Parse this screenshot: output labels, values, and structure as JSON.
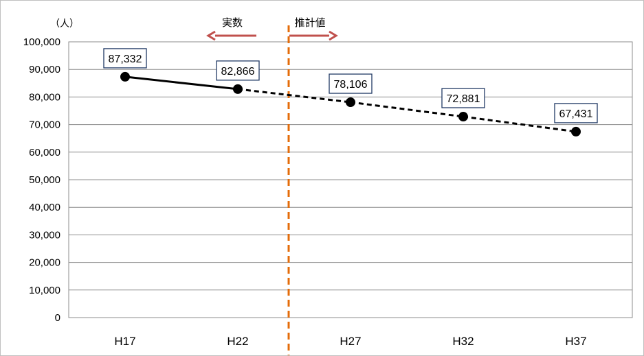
{
  "chart_data": {
    "type": "line",
    "categories": [
      "H17",
      "H22",
      "H27",
      "H32",
      "H37"
    ],
    "values": [
      87332,
      82866,
      78106,
      72881,
      67431
    ],
    "data_labels": [
      "87,332",
      "82,866",
      "78,106",
      "72,881",
      "67,431"
    ],
    "actual_count": 2,
    "ylim": [
      0,
      100000
    ],
    "yticks": [
      0,
      10000,
      20000,
      30000,
      40000,
      50000,
      60000,
      70000,
      80000,
      90000,
      100000
    ],
    "ytick_labels": [
      "0",
      "10,000",
      "20,000",
      "30,000",
      "40,000",
      "50,000",
      "60,000",
      "70,000",
      "80,000",
      "90,000",
      "100,000"
    ],
    "unit": "（人）",
    "grid": true,
    "actual_label": "実数",
    "projected_label": "推計値",
    "colors": {
      "line": "#000000",
      "marker": "#000000",
      "divider": "#E46C0A",
      "arrow": "#C0504D",
      "grid": "#8c8c8c",
      "label_border": "#1F3864"
    }
  }
}
